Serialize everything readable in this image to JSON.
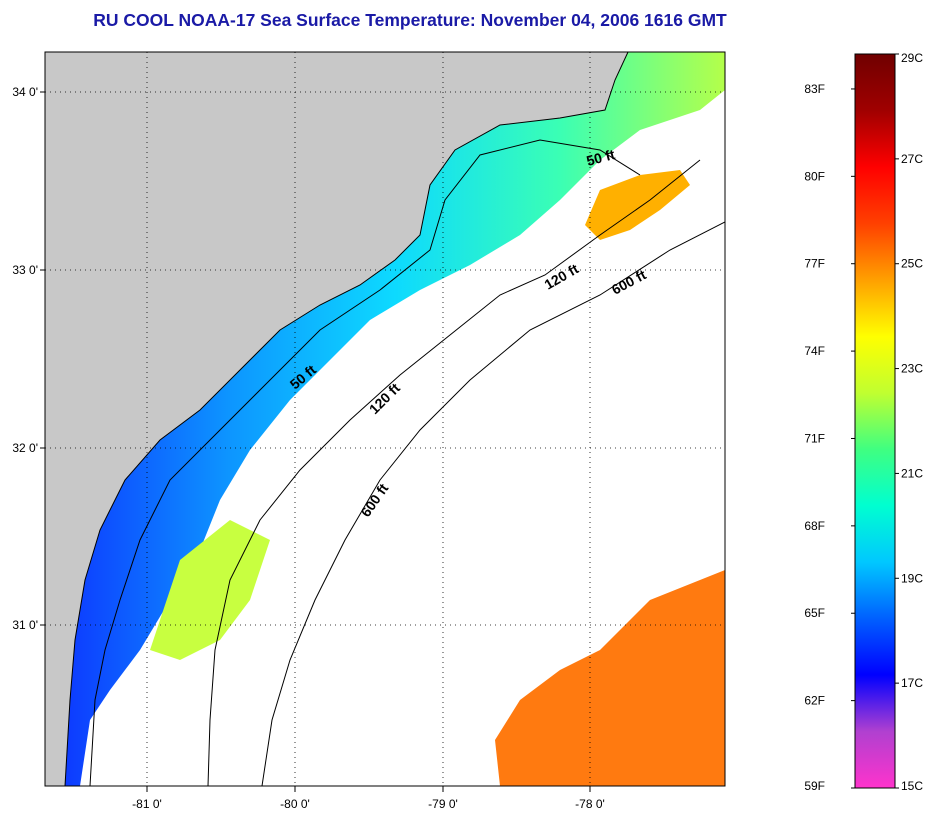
{
  "title": "RU COOL  NOAA-17  Sea Surface Temperature:  November 04, 2006 1616 GMT",
  "map": {
    "lat_labels": [
      "34 0'",
      "33 0'",
      "32 0'",
      "31 0'"
    ],
    "lon_labels": [
      "-81 0'",
      "-80 0'",
      "-79 0'",
      "-78 0'"
    ],
    "contour_labels": [
      "50 ft",
      "120 ft",
      "600 ft",
      "50 ft",
      "120 ft",
      "600 ft"
    ],
    "colors": {
      "land": "#c8c8c8",
      "ocean_nodata": "#ffffff",
      "coast": "#000000"
    }
  },
  "colorbar": {
    "fahrenheit_labels": [
      "83F",
      "80F",
      "77F",
      "74F",
      "71F",
      "68F",
      "65F",
      "62F",
      "59F"
    ],
    "celsius_labels": [
      "29C",
      "27C",
      "25C",
      "23C",
      "21C",
      "19C",
      "17C",
      "15C"
    ],
    "min_c": 15,
    "max_c": 29,
    "gradient": [
      "#ff33cc",
      "#b040d0",
      "#0000ff",
      "#0060ff",
      "#00c8ff",
      "#00ffd0",
      "#40ff80",
      "#c0ff30",
      "#ffff00",
      "#ffa000",
      "#ff4000",
      "#ff0000",
      "#a00000",
      "#700000"
    ]
  }
}
